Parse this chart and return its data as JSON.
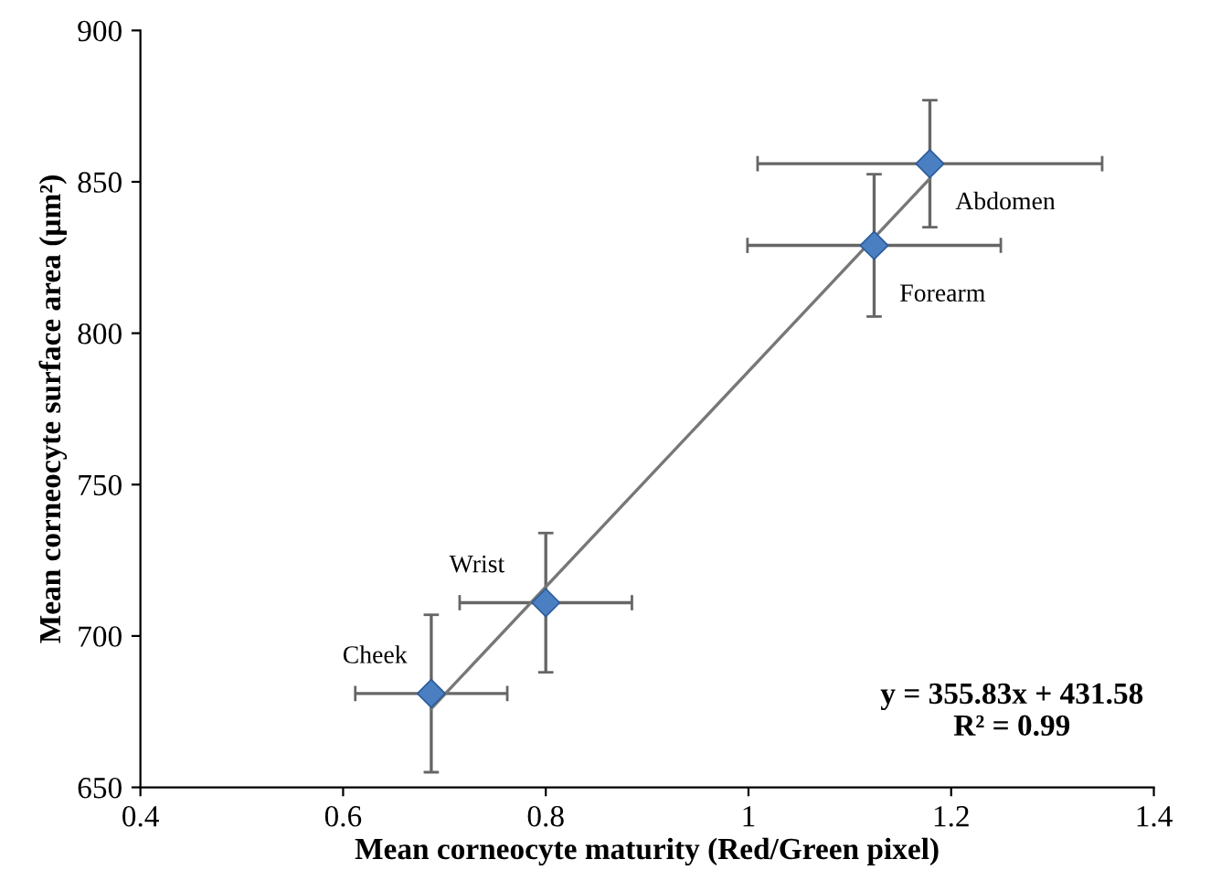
{
  "chart_data": {
    "type": "scatter",
    "xlabel": "Mean corneocyte maturity (Red/Green pixel)",
    "ylabel": "Mean corneocyte surface area (µm²)",
    "xlim": [
      0.4,
      1.4
    ],
    "xticks": [
      0.4,
      0.6,
      0.8,
      1,
      1.2,
      1.4
    ],
    "ylim": [
      650,
      900
    ],
    "yticks": [
      650,
      700,
      750,
      800,
      850,
      900
    ],
    "grid": false,
    "legend": false,
    "series": [
      {
        "type": "line",
        "color": "#777777",
        "x": [
          0.687,
          1.179
        ],
        "values": [
          676.0,
          851.1
        ],
        "marker": "none",
        "line_style": "solid"
      },
      {
        "color": "#4a7fc1",
        "marker": "diamond",
        "x": [
          0.687,
          0.8,
          1.124,
          1.179
        ],
        "values": [
          681,
          711,
          829,
          856
        ],
        "errors": [
          26,
          23,
          23.5,
          21
        ],
        "xerrors": [
          0.075,
          0.085,
          0.125,
          0.17
        ]
      }
    ],
    "annotations": [
      {
        "text": "Cheek",
        "x": 0.687,
        "y": 681
      },
      {
        "text": "Wrist",
        "x": 0.8,
        "y": 711
      },
      {
        "text": "Forearm",
        "x": 1.124,
        "y": 829
      },
      {
        "text": "Abdomen",
        "x": 1.179,
        "y": 856
      },
      "y = 355.83x + 431.58\nR² = 0.99"
    ]
  }
}
